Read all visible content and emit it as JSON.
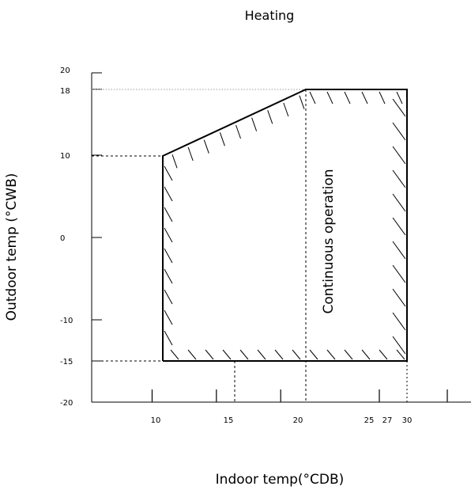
{
  "diagram": {
    "title": "Heating",
    "x_axis": {
      "label": "Indoor temp(°CDB)",
      "ticks": [
        {
          "value": 10,
          "label": "10"
        },
        {
          "value": 15,
          "label": "15"
        },
        {
          "value": 20,
          "label": "20"
        },
        {
          "value": 25,
          "label": "25"
        },
        {
          "value": 27,
          "label": "27"
        },
        {
          "value": 30,
          "label": "30"
        }
      ],
      "range": [
        5.3,
        34.8
      ]
    },
    "y_axis": {
      "label": "Outdoor temp (°CWB)",
      "ticks": [
        {
          "value": 20,
          "label": "20"
        },
        {
          "value": 18,
          "label": "18"
        },
        {
          "value": 10,
          "label": "10"
        },
        {
          "value": 0,
          "label": "0"
        },
        {
          "value": -10,
          "label": "-10"
        },
        {
          "value": -15,
          "label": "-15"
        },
        {
          "value": -20,
          "label": "-20"
        }
      ],
      "range": [
        -20,
        20
      ]
    },
    "region_label": "Continuous operation",
    "operating_region": {
      "points": [
        [
          10,
          -15
        ],
        [
          10,
          10
        ],
        [
          20,
          18
        ],
        [
          27,
          18
        ],
        [
          27,
          -15
        ]
      ]
    },
    "reference_lines": {
      "vertical_at_x": [
        15,
        20,
        27
      ],
      "horizontal_at_y": [
        18,
        10,
        -15
      ]
    },
    "hatching": "inner-side",
    "colors": {
      "line": "#000000",
      "background": "#ffffff",
      "light_guide": "#999999"
    }
  }
}
